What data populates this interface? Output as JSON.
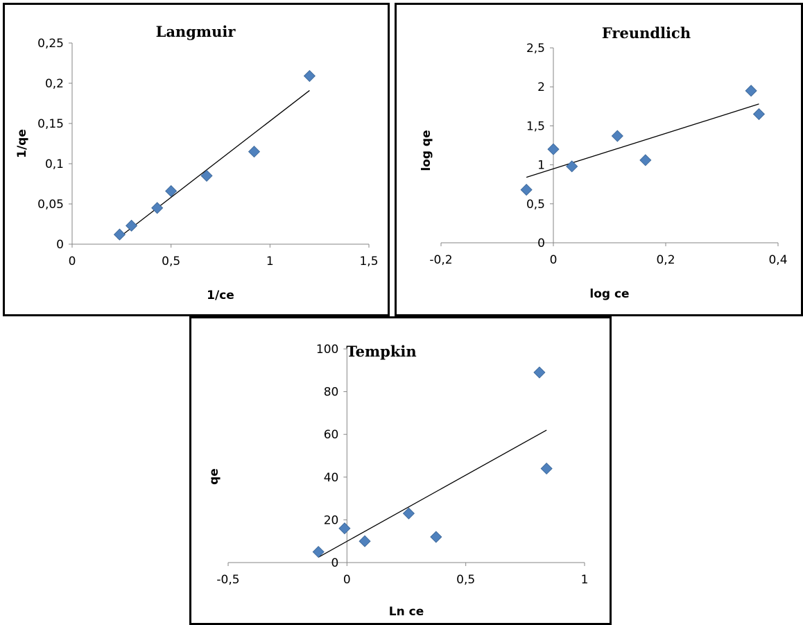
{
  "chart_data": [
    {
      "type": "scatter",
      "title": "Langmuir",
      "xlabel": "1/ce",
      "ylabel": "1/qe",
      "xlim": [
        0,
        1.5
      ],
      "ylim": [
        0,
        0.25
      ],
      "x_ticks": [
        "0",
        "0,5",
        "1",
        "1,5"
      ],
      "y_ticks": [
        "0",
        "0,05",
        "0,1",
        "0,15",
        "0,2",
        "0,25"
      ],
      "grid": false,
      "legend": "none",
      "marker_color": "#4F81BD",
      "trendline": {
        "x": [
          0.23,
          1.2
        ],
        "y": [
          0.007,
          0.191
        ]
      },
      "series": [
        {
          "x": [
            0.24,
            0.3,
            0.43,
            0.5,
            0.68,
            0.92,
            1.2
          ],
          "y": [
            0.012,
            0.023,
            0.045,
            0.066,
            0.085,
            0.115,
            0.209
          ]
        }
      ]
    },
    {
      "type": "scatter",
      "title": "Freundlich",
      "xlabel": "log ce",
      "ylabel": "log qe",
      "xlim": [
        -0.2,
        0.4
      ],
      "ylim": [
        0,
        2.5
      ],
      "x_ticks": [
        "-0,2",
        "0",
        "0,2",
        "0,4"
      ],
      "y_ticks": [
        "0",
        "0,5",
        "1",
        "1,5",
        "2",
        "2,5"
      ],
      "grid": false,
      "legend": "none",
      "marker_color": "#4F81BD",
      "trendline": {
        "x": [
          -0.048,
          0.366
        ],
        "y": [
          0.84,
          1.78
        ]
      },
      "series": [
        {
          "x": [
            -0.048,
            0.0,
            0.033,
            0.114,
            0.164,
            0.352,
            0.366
          ],
          "y": [
            0.68,
            1.2,
            0.98,
            1.37,
            1.06,
            1.95,
            1.65
          ]
        }
      ]
    },
    {
      "type": "scatter",
      "title": "Tempkin",
      "xlabel": "Ln ce",
      "ylabel": "qe",
      "xlim": [
        -0.5,
        1
      ],
      "ylim": [
        0,
        100
      ],
      "x_ticks": [
        "-0,5",
        "0",
        "0,5",
        "1"
      ],
      "y_ticks": [
        "0",
        "20",
        "40",
        "60",
        "80",
        "100"
      ],
      "grid": false,
      "legend": "none",
      "marker_color": "#4F81BD",
      "trendline": {
        "x": [
          -0.12,
          0.84
        ],
        "y": [
          2.5,
          62
        ]
      },
      "series": [
        {
          "x": [
            -0.12,
            -0.01,
            0.075,
            0.26,
            0.375,
            0.81,
            0.84
          ],
          "y": [
            5,
            16,
            10,
            23,
            12,
            89,
            44
          ]
        }
      ]
    }
  ]
}
